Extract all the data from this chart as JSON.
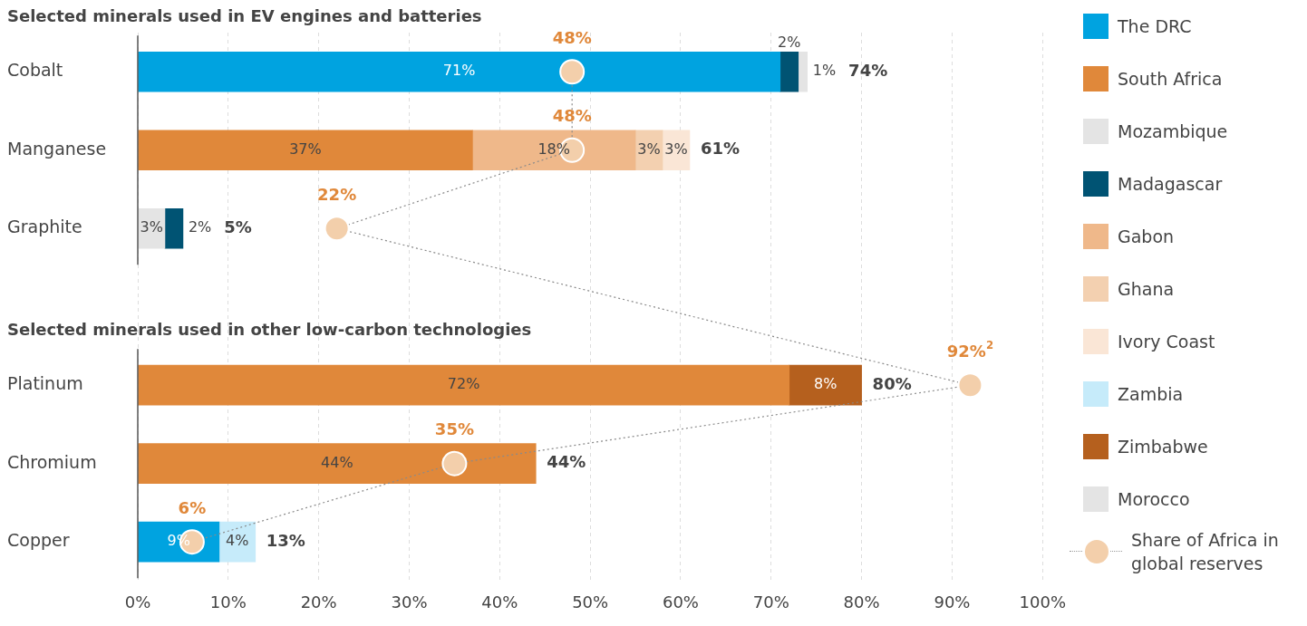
{
  "chart_data": {
    "type": "bar",
    "orientation": "horizontal",
    "stacked": true,
    "annotations": [
      "Selected minerals used in EV engines and batteries",
      "Selected minerals used in other low-carbon technologies"
    ],
    "categories": [
      "Cobalt",
      "Manganese",
      "Graphite",
      null,
      "Platinum",
      "Chromium",
      "Copper"
    ],
    "xlim": [
      0,
      100
    ],
    "xticks": [
      {
        "value": 0,
        "label": "0%"
      },
      {
        "value": 10,
        "label": "10%"
      },
      {
        "value": 20,
        "label": "20%"
      },
      {
        "value": 30,
        "label": "30%"
      },
      {
        "value": 40,
        "label": "40%"
      },
      {
        "value": 50,
        "label": "50%"
      },
      {
        "value": 60,
        "label": "60%"
      },
      {
        "value": 70,
        "label": "70%"
      },
      {
        "value": 80,
        "label": "80%"
      },
      {
        "value": 90,
        "label": "90%"
      },
      {
        "value": 100,
        "label": "100%"
      }
    ],
    "grid": "x",
    "legend": "right",
    "marker": "circle",
    "line_style": "dotted",
    "series": [
      {
        "name": "The DRC",
        "color": "#00a3e0",
        "values": [
          71,
          null,
          null,
          null,
          null,
          null,
          9
        ],
        "value_labels": [
          "71%",
          null,
          null,
          null,
          null,
          null,
          "9%"
        ]
      },
      {
        "name": "South Africa",
        "color": "#e0883a",
        "values": [
          null,
          37,
          null,
          null,
          72,
          44,
          null
        ],
        "value_labels": [
          null,
          "37%",
          null,
          null,
          "72%",
          "44%",
          null
        ]
      },
      {
        "name": "Mozambique",
        "color": "#e4e4e4",
        "values": [
          null,
          null,
          3,
          null,
          null,
          null,
          null
        ],
        "value_labels": [
          null,
          null,
          "3%",
          null,
          null,
          null,
          null
        ]
      },
      {
        "name": "Madagascar",
        "color": "#005373",
        "values": [
          2,
          null,
          2,
          null,
          null,
          null,
          null
        ],
        "value_labels": [
          "2%",
          null,
          "2%",
          null,
          null,
          null,
          null
        ]
      },
      {
        "name": "Gabon",
        "color": "#efb88a",
        "values": [
          null,
          18,
          null,
          null,
          null,
          null,
          null
        ],
        "value_labels": [
          null,
          "18%",
          null,
          null,
          null,
          null,
          null
        ]
      },
      {
        "name": "Ghana",
        "color": "#f3d0b0",
        "values": [
          null,
          3,
          null,
          null,
          null,
          null,
          null
        ],
        "value_labels": [
          null,
          "3%",
          null,
          null,
          null,
          null,
          null
        ]
      },
      {
        "name": "Ivory Coast",
        "color": "#fae6d6",
        "values": [
          null,
          3,
          null,
          null,
          null,
          null,
          null
        ],
        "value_labels": [
          null,
          "3%",
          null,
          null,
          null,
          null,
          null
        ]
      },
      {
        "name": "Zambia",
        "color": "#c6ebfa",
        "values": [
          null,
          null,
          null,
          null,
          null,
          null,
          4
        ],
        "value_labels": [
          null,
          null,
          null,
          null,
          null,
          null,
          "4%"
        ]
      },
      {
        "name": "Zimbabwe",
        "color": "#b5601e",
        "values": [
          null,
          null,
          null,
          null,
          8,
          null,
          null
        ],
        "value_labels": [
          null,
          null,
          null,
          null,
          "8%",
          null,
          null
        ]
      },
      {
        "name": "Morocco",
        "color": "#e4e4e4",
        "values": [
          1,
          null,
          null,
          null,
          null,
          null,
          null
        ],
        "value_labels": [
          "1%",
          null,
          null,
          null,
          null,
          null,
          null
        ]
      },
      {
        "name": "Share of Africa in global reserves",
        "type": "line",
        "color": "#f3cfab",
        "values": [
          48,
          48,
          22,
          null,
          92,
          35,
          6
        ],
        "value_labels": [
          "48%",
          "48%",
          "22%",
          null,
          "92%$^{2}$",
          "35%",
          "6%"
        ]
      }
    ],
    "totals": [
      "74%",
      "61%",
      "5%",
      null,
      "80%",
      "44%",
      "13%"
    ]
  }
}
